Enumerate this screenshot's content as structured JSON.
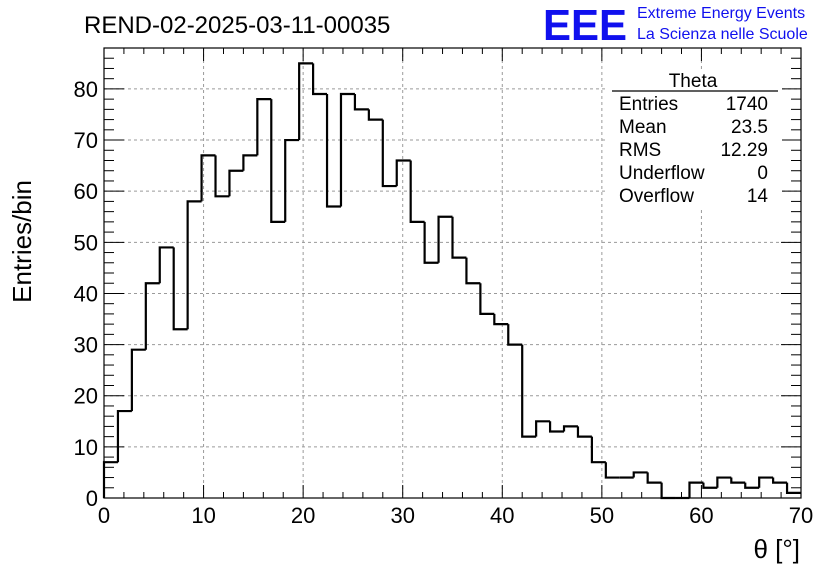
{
  "chart_data": {
    "type": "histogram",
    "title": "REND-02-2025-03-11-00035",
    "xlabel": "θ [°]",
    "ylabel": "Entries/bin",
    "xlim": [
      0,
      70
    ],
    "ylim": [
      0,
      88
    ],
    "grid": true,
    "x_ticks": [
      0,
      10,
      20,
      30,
      40,
      50,
      60,
      70
    ],
    "y_ticks": [
      0,
      10,
      20,
      30,
      40,
      50,
      60,
      70,
      80
    ],
    "bin_width": 1.4,
    "bins_low_edge": 0,
    "values": [
      7,
      17,
      29,
      42,
      49,
      33,
      58,
      67,
      59,
      64,
      67,
      78,
      54,
      70,
      85,
      79,
      57,
      79,
      76,
      74,
      61,
      66,
      54,
      46,
      55,
      47,
      42,
      36,
      34,
      30,
      12,
      15,
      13,
      14,
      12,
      7,
      4,
      4,
      5,
      3,
      0,
      0,
      3,
      2,
      4,
      3,
      2,
      4,
      3,
      1
    ],
    "stats_box": {
      "name": "Theta",
      "rows": [
        {
          "label": "Entries",
          "value": "1740"
        },
        {
          "label": "Mean",
          "value": "23.5"
        },
        {
          "label": "RMS",
          "value": "12.29"
        },
        {
          "label": "Underflow",
          "value": "0"
        },
        {
          "label": "Overflow",
          "value": "14"
        }
      ]
    },
    "legend_position": "top-right"
  },
  "logo": {
    "mark": "EEE",
    "line1": "Extreme Energy Events",
    "line2": "La Scienza nelle Scuole"
  },
  "colors": {
    "histogram": "#000000",
    "grid": "#9a9a9a",
    "logo": "#1010ee"
  }
}
